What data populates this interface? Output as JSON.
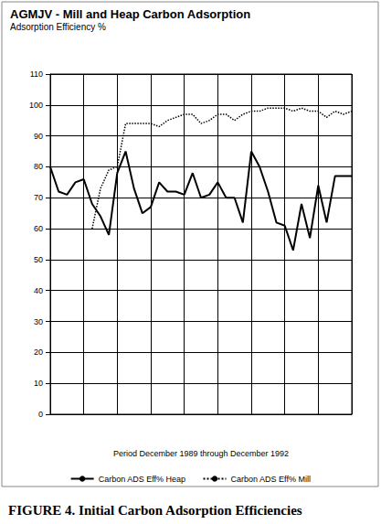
{
  "chart_data": {
    "type": "line",
    "title": "AGMJV - Mill and Heap Carbon Adsorption",
    "subtitle": "Adsorption Efficiency %",
    "xlabel": "Period December 1989 through December 1992",
    "caption": "FIGURE 4. Initial Carbon Adsorption Efficiencies",
    "categories": [
      null,
      null,
      null,
      null,
      null,
      null,
      null,
      null,
      null,
      null,
      null,
      null,
      null,
      null,
      null,
      null,
      null,
      null,
      null,
      null,
      null,
      null,
      null,
      null,
      null,
      null,
      null,
      null,
      null,
      null,
      null,
      null,
      null,
      null,
      null,
      null,
      null
    ],
    "series": [
      {
        "name": "Carbon ADS Eff% Heap",
        "color": "#000000",
        "line_style": "solid",
        "marker": "none",
        "values": [
          80,
          72,
          71,
          75,
          76,
          68,
          64,
          58,
          78,
          85,
          73,
          65,
          67,
          75,
          72,
          72,
          71,
          78,
          70,
          71,
          75,
          70,
          70,
          62,
          85,
          80,
          72,
          62,
          61,
          53,
          68,
          57,
          74,
          62,
          77,
          77,
          77
        ]
      },
      {
        "name": "Carbon ADS Eff% Mill",
        "color": "#000000",
        "line_style": "dotted",
        "marker": "none",
        "values": [
          null,
          null,
          null,
          null,
          null,
          60,
          73,
          79,
          80,
          94,
          94,
          94,
          94,
          93,
          95,
          96,
          97,
          97,
          94,
          95,
          97,
          97,
          95,
          97,
          98,
          98,
          99,
          99,
          99,
          98,
          99,
          98,
          98,
          96,
          98,
          97,
          98
        ]
      }
    ],
    "ylim": [
      0,
      110
    ],
    "yticks": [
      0,
      10,
      20,
      30,
      40,
      50,
      60,
      70,
      80,
      90,
      100,
      110
    ],
    "grid": true,
    "legend": "bottom",
    "tick_labels": "y"
  }
}
